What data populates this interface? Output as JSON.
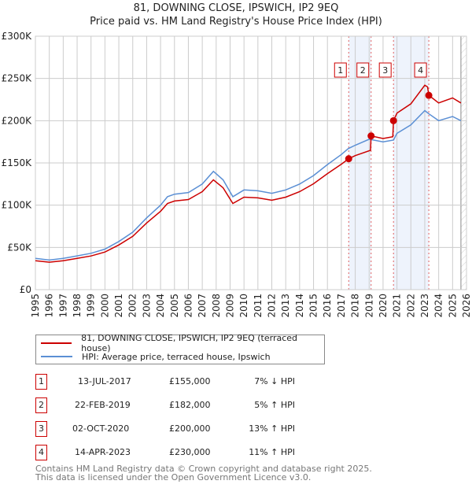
{
  "title_line1": "81, DOWNING CLOSE, IPSWICH, IP2 9EQ",
  "title_line2": "Price paid vs. HM Land Registry's House Price Index (HPI)",
  "chart_data": {
    "type": "line",
    "title": "81, DOWNING CLOSE, IPSWICH, IP2 9EQ — Price paid vs. HM Land Registry's House Price Index (HPI)",
    "xlim": [
      1995,
      2026
    ],
    "ylim": [
      0,
      300000
    ],
    "x_ticks": [
      "1995",
      "1996",
      "1997",
      "1998",
      "1999",
      "2000",
      "2001",
      "2002",
      "2003",
      "2004",
      "2005",
      "2006",
      "2007",
      "2008",
      "2009",
      "2010",
      "2011",
      "2012",
      "2013",
      "2014",
      "2015",
      "2016",
      "2017",
      "2018",
      "2019",
      "2020",
      "2021",
      "2022",
      "2023",
      "2024",
      "2025",
      "2026"
    ],
    "y_ticks": [
      {
        "v": 0,
        "label": "£0"
      },
      {
        "v": 50000,
        "label": "£50K"
      },
      {
        "v": 100000,
        "label": "£100K"
      },
      {
        "v": 150000,
        "label": "£150K"
      },
      {
        "v": 200000,
        "label": "£200K"
      },
      {
        "v": 250000,
        "label": "£250K"
      },
      {
        "v": 300000,
        "label": "£300K"
      }
    ],
    "grid": true,
    "colors": {
      "property": "#cc0000",
      "hpi": "#5b8fd4",
      "shade": "#eef3fc"
    },
    "shaded_ranges": [
      [
        2017.53,
        2019.14
      ],
      [
        2020.75,
        2023.29
      ]
    ],
    "forecast_from": 2025.6,
    "series": [
      {
        "name": "81, DOWNING CLOSE, IPSWICH, IP2 9EQ (terraced house)",
        "key": "property",
        "x": [
          1995,
          1996,
          1997,
          1998,
          1999,
          2000,
          2001,
          2002,
          2003,
          2004,
          2004.5,
          2005,
          2006,
          2007,
          2007.8,
          2008.5,
          2009.2,
          2010,
          2011,
          2012,
          2013,
          2014,
          2015,
          2016,
          2017,
          2017.53,
          2018,
          2019.1,
          2019.14,
          2020,
          2020.7,
          2020.75,
          2021,
          2022,
          2023,
          2023.2,
          2023.29,
          2024,
          2025,
          2025.6
        ],
        "y": [
          34300,
          32500,
          34300,
          37100,
          39900,
          44500,
          52900,
          63100,
          78900,
          92800,
          102000,
          104900,
          106700,
          116000,
          130000,
          120600,
          102000,
          109500,
          108600,
          105800,
          109500,
          116000,
          125300,
          137300,
          148500,
          155000,
          158700,
          165000,
          182000,
          178900,
          181000,
          200000,
          209000,
          220000,
          242000,
          240000,
          230000,
          221000,
          227000,
          221000
        ]
      },
      {
        "name": "HPI: Average price, terraced house, Ipswich",
        "key": "hpi",
        "x": [
          1995,
          1996,
          1997,
          1998,
          1999,
          2000,
          2001,
          2002,
          2003,
          2004,
          2004.5,
          2005,
          2006,
          2007,
          2007.8,
          2008.5,
          2009.2,
          2010,
          2011,
          2012,
          2013,
          2014,
          2015,
          2016,
          2017,
          2017.5,
          2018,
          2019,
          2020,
          2020.75,
          2021,
          2022,
          2023,
          2023.3,
          2024,
          2025,
          2025.6
        ],
        "y": [
          37000,
          35000,
          37000,
          40000,
          43000,
          48000,
          57000,
          68000,
          85000,
          100000,
          110000,
          113000,
          115000,
          125000,
          140000,
          130000,
          110000,
          118000,
          117000,
          114000,
          118000,
          125000,
          135000,
          148000,
          160000,
          167000,
          171000,
          178000,
          175000,
          177000,
          185000,
          195000,
          212000,
          208000,
          200000,
          205000,
          200000
        ]
      }
    ],
    "sales": [
      {
        "n": "1",
        "x": 2017.53,
        "price": 155000
      },
      {
        "n": "2",
        "x": 2019.14,
        "price": 182000
      },
      {
        "n": "3",
        "x": 2020.75,
        "price": 200000
      },
      {
        "n": "4",
        "x": 2023.29,
        "price": 230000
      }
    ]
  },
  "legend": {
    "property": "81, DOWNING CLOSE, IPSWICH, IP2 9EQ (terraced house)",
    "hpi": "HPI: Average price, terraced house, Ipswich"
  },
  "transactions": [
    {
      "n": "1",
      "date": "13-JUL-2017",
      "price": "£155,000",
      "hpi": "7% ↓ HPI"
    },
    {
      "n": "2",
      "date": "22-FEB-2019",
      "price": "£182,000",
      "hpi": "5% ↑ HPI"
    },
    {
      "n": "3",
      "date": "02-OCT-2020",
      "price": "£200,000",
      "hpi": "13% ↑ HPI"
    },
    {
      "n": "4",
      "date": "14-APR-2023",
      "price": "£230,000",
      "hpi": "11% ↑ HPI"
    }
  ],
  "footer_line1": "Contains HM Land Registry data © Crown copyright and database right 2025.",
  "footer_line2": "This data is licensed under the Open Government Licence v3.0."
}
